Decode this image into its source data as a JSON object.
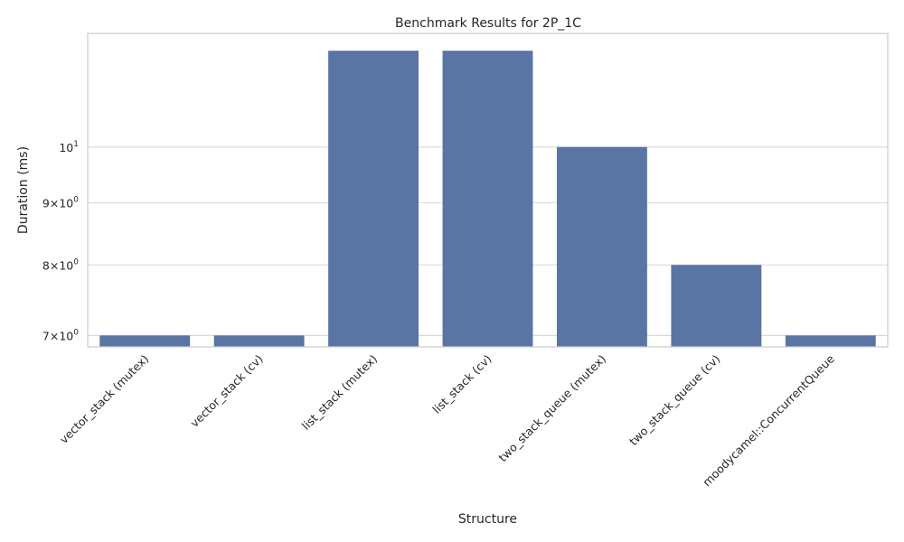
{
  "chart_data": {
    "type": "bar",
    "title": "Benchmark Results for 2P_1C",
    "xlabel": "Structure",
    "ylabel": "Duration (ms)",
    "y_scale": "log",
    "ylim": [
      6.85,
      12.4
    ],
    "categories": [
      "vector_stack (mutex)",
      "vector_stack (cv)",
      "list_stack (mutex)",
      "list_stack (cv)",
      "two_stack_queue (mutex)",
      "two_stack_queue (cv)",
      "moodycamel::ConcurrentQueue"
    ],
    "values": [
      7,
      7,
      12,
      12,
      10,
      8,
      7
    ],
    "y_ticks": [
      {
        "value": 7,
        "mantissa": "7",
        "base": "10",
        "exponent": "0"
      },
      {
        "value": 8,
        "mantissa": "8",
        "base": "10",
        "exponent": "0"
      },
      {
        "value": 9,
        "mantissa": "9",
        "base": "10",
        "exponent": "0"
      },
      {
        "value": 10,
        "mantissa": "",
        "base": "10",
        "exponent": "1"
      }
    ],
    "grid": {
      "horizontal": true,
      "vertical": false
    },
    "colors": {
      "bar": "#5975a4",
      "grid": "#d5d5d5",
      "axes_edge": "#cccccc",
      "text": "#262626"
    }
  }
}
